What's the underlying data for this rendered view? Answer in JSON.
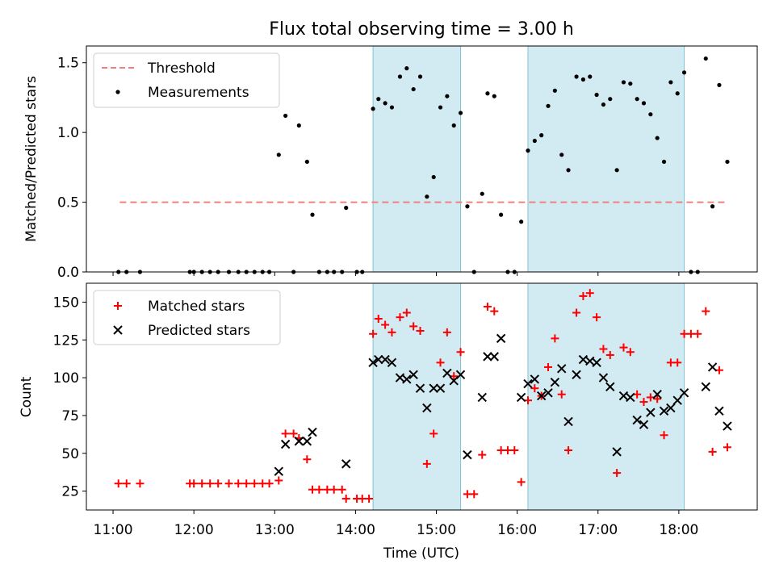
{
  "title": "Flux total observing time = 3.00 h",
  "colors": {
    "threshold": "#f08080",
    "measurement": "#000000",
    "matched": "#ff0000",
    "predicted": "#000000",
    "shade_fill": "#add8e6",
    "shade_edge": "#7fc4cf"
  },
  "chart_data": [
    {
      "type": "scatter",
      "ylabel": "Matched/Predicted stars",
      "ylim": [
        0,
        1.62
      ],
      "xlim_hours": [
        10.67,
        18.97
      ],
      "yticks": [
        0.0,
        0.5,
        1.0,
        1.5
      ],
      "ytick_labels": [
        "0.0",
        "0.5",
        "1.0",
        "1.5"
      ],
      "legend": {
        "location": "upper-left",
        "threshold": "Threshold",
        "measurements": "Measurements"
      },
      "threshold": {
        "value": 0.5,
        "x_from": "11:05",
        "x_to": "18:36"
      },
      "shaded_intervals": [
        [
          "14:13",
          "15:18"
        ],
        [
          "16:08",
          "18:04"
        ]
      ],
      "measurements": [
        [
          "11:04",
          0
        ],
        [
          "11:10",
          0
        ],
        [
          "11:20",
          0
        ],
        [
          "11:57",
          0
        ],
        [
          "12:00",
          0
        ],
        [
          "12:06",
          0
        ],
        [
          "12:12",
          0
        ],
        [
          "12:18",
          0
        ],
        [
          "12:26",
          0
        ],
        [
          "12:33",
          0
        ],
        [
          "12:39",
          0
        ],
        [
          "12:45",
          0
        ],
        [
          "12:51",
          0
        ],
        [
          "12:56",
          0
        ],
        [
          "13:03",
          0.84
        ],
        [
          "13:08",
          1.12
        ],
        [
          "13:14",
          0
        ],
        [
          "13:18",
          1.05
        ],
        [
          "13:24",
          0.79
        ],
        [
          "13:28",
          0.41
        ],
        [
          "13:33",
          0
        ],
        [
          "13:39",
          0
        ],
        [
          "13:44",
          0
        ],
        [
          "13:50",
          0
        ],
        [
          "13:53",
          0.46
        ],
        [
          "14:01",
          0
        ],
        [
          "14:05",
          0
        ],
        [
          "14:13",
          1.17
        ],
        [
          "14:17",
          1.24
        ],
        [
          "14:22",
          1.21
        ],
        [
          "14:27",
          1.18
        ],
        [
          "14:33",
          1.4
        ],
        [
          "14:38",
          1.46
        ],
        [
          "14:43",
          1.31
        ],
        [
          "14:48",
          1.4
        ],
        [
          "14:53",
          0.54
        ],
        [
          "14:58",
          0.68
        ],
        [
          "15:03",
          1.18
        ],
        [
          "15:08",
          1.26
        ],
        [
          "15:13",
          1.05
        ],
        [
          "15:18",
          1.14
        ],
        [
          "15:23",
          0.47
        ],
        [
          "15:28",
          0
        ],
        [
          "15:34",
          0.56
        ],
        [
          "15:38",
          1.28
        ],
        [
          "15:43",
          1.26
        ],
        [
          "15:48",
          0.41
        ],
        [
          "15:53",
          0
        ],
        [
          "15:58",
          0
        ],
        [
          "16:03",
          0.36
        ],
        [
          "16:08",
          0.87
        ],
        [
          "16:13",
          0.94
        ],
        [
          "16:18",
          0.98
        ],
        [
          "16:23",
          1.19
        ],
        [
          "16:28",
          1.3
        ],
        [
          "16:33",
          0.84
        ],
        [
          "16:38",
          0.73
        ],
        [
          "16:44",
          1.4
        ],
        [
          "16:49",
          1.38
        ],
        [
          "16:54",
          1.4
        ],
        [
          "16:59",
          1.27
        ],
        [
          "17:04",
          1.2
        ],
        [
          "17:09",
          1.24
        ],
        [
          "17:14",
          0.73
        ],
        [
          "17:19",
          1.36
        ],
        [
          "17:24",
          1.35
        ],
        [
          "17:29",
          1.24
        ],
        [
          "17:34",
          1.21
        ],
        [
          "17:39",
          1.13
        ],
        [
          "17:44",
          0.96
        ],
        [
          "17:49",
          0.79
        ],
        [
          "17:54",
          1.36
        ],
        [
          "17:59",
          1.28
        ],
        [
          "18:04",
          1.43
        ],
        [
          "18:09",
          0
        ],
        [
          "18:14",
          0
        ],
        [
          "18:20",
          1.53
        ],
        [
          "18:25",
          0.47
        ],
        [
          "18:30",
          1.34
        ],
        [
          "18:36",
          0.79
        ]
      ]
    },
    {
      "type": "scatter",
      "xlabel": "Time (UTC)",
      "ylabel": "Count",
      "ylim": [
        12.5,
        162.5
      ],
      "xlim_hours": [
        10.67,
        18.97
      ],
      "yticks": [
        25,
        50,
        75,
        100,
        125,
        150
      ],
      "ytick_labels": [
        "25",
        "50",
        "75",
        "100",
        "125",
        "150"
      ],
      "xticks": [
        "11:00",
        "12:00",
        "13:00",
        "14:00",
        "15:00",
        "16:00",
        "17:00",
        "18:00"
      ],
      "legend": {
        "location": "upper-left",
        "matched": "Matched stars",
        "predicted": "Predicted stars"
      },
      "shaded_intervals": [
        [
          "14:13",
          "15:18"
        ],
        [
          "16:08",
          "18:04"
        ]
      ],
      "matched": [
        [
          "11:04",
          30
        ],
        [
          "11:10",
          30
        ],
        [
          "11:20",
          30
        ],
        [
          "11:57",
          30
        ],
        [
          "12:00",
          30
        ],
        [
          "12:06",
          30
        ],
        [
          "12:12",
          30
        ],
        [
          "12:18",
          30
        ],
        [
          "12:26",
          30
        ],
        [
          "12:33",
          30
        ],
        [
          "12:39",
          30
        ],
        [
          "12:45",
          30
        ],
        [
          "12:51",
          30
        ],
        [
          "12:56",
          30
        ],
        [
          "13:03",
          32
        ],
        [
          "13:08",
          63
        ],
        [
          "13:14",
          63
        ],
        [
          "13:18",
          60
        ],
        [
          "13:24",
          46
        ],
        [
          "13:28",
          26
        ],
        [
          "13:33",
          26
        ],
        [
          "13:39",
          26
        ],
        [
          "13:44",
          26
        ],
        [
          "13:50",
          26
        ],
        [
          "13:53",
          20
        ],
        [
          "14:01",
          20
        ],
        [
          "14:05",
          20
        ],
        [
          "14:10",
          20
        ],
        [
          "14:13",
          129
        ],
        [
          "14:17",
          139
        ],
        [
          "14:22",
          135
        ],
        [
          "14:27",
          130
        ],
        [
          "14:33",
          140
        ],
        [
          "14:38",
          143
        ],
        [
          "14:43",
          134
        ],
        [
          "14:48",
          131
        ],
        [
          "14:53",
          43
        ],
        [
          "14:58",
          63
        ],
        [
          "15:03",
          110
        ],
        [
          "15:08",
          130
        ],
        [
          "15:13",
          101
        ],
        [
          "15:18",
          117
        ],
        [
          "15:23",
          23
        ],
        [
          "15:28",
          23
        ],
        [
          "15:34",
          49
        ],
        [
          "15:38",
          147
        ],
        [
          "15:43",
          144
        ],
        [
          "15:48",
          52
        ],
        [
          "15:53",
          52
        ],
        [
          "15:58",
          52
        ],
        [
          "16:03",
          31
        ],
        [
          "16:08",
          85
        ],
        [
          "16:13",
          93
        ],
        [
          "16:18",
          88
        ],
        [
          "16:23",
          107
        ],
        [
          "16:28",
          126
        ],
        [
          "16:33",
          89
        ],
        [
          "16:38",
          52
        ],
        [
          "16:44",
          143
        ],
        [
          "16:49",
          154
        ],
        [
          "16:54",
          156
        ],
        [
          "16:59",
          140
        ],
        [
          "17:04",
          119
        ],
        [
          "17:09",
          115
        ],
        [
          "17:14",
          37
        ],
        [
          "17:19",
          120
        ],
        [
          "17:24",
          117
        ],
        [
          "17:29",
          89
        ],
        [
          "17:34",
          84
        ],
        [
          "17:39",
          87
        ],
        [
          "17:44",
          86
        ],
        [
          "17:49",
          62
        ],
        [
          "17:54",
          110
        ],
        [
          "17:59",
          110
        ],
        [
          "18:04",
          129
        ],
        [
          "18:09",
          129
        ],
        [
          "18:14",
          129
        ],
        [
          "18:20",
          144
        ],
        [
          "18:25",
          51
        ],
        [
          "18:30",
          105
        ],
        [
          "18:36",
          54
        ]
      ],
      "predicted": [
        [
          "13:03",
          38
        ],
        [
          "13:08",
          56
        ],
        [
          "13:18",
          58
        ],
        [
          "13:24",
          58
        ],
        [
          "13:28",
          64
        ],
        [
          "13:53",
          43
        ],
        [
          "14:13",
          110
        ],
        [
          "14:17",
          112
        ],
        [
          "14:22",
          112
        ],
        [
          "14:27",
          110
        ],
        [
          "14:33",
          100
        ],
        [
          "14:38",
          99
        ],
        [
          "14:43",
          102
        ],
        [
          "14:48",
          93
        ],
        [
          "14:53",
          80
        ],
        [
          "14:58",
          93
        ],
        [
          "15:03",
          93
        ],
        [
          "15:08",
          103
        ],
        [
          "15:13",
          98
        ],
        [
          "15:18",
          102
        ],
        [
          "15:23",
          49
        ],
        [
          "15:34",
          87
        ],
        [
          "15:38",
          114
        ],
        [
          "15:43",
          114
        ],
        [
          "15:48",
          126
        ],
        [
          "16:03",
          87
        ],
        [
          "16:08",
          96
        ],
        [
          "16:13",
          99
        ],
        [
          "16:18",
          88
        ],
        [
          "16:23",
          90
        ],
        [
          "16:28",
          97
        ],
        [
          "16:33",
          106
        ],
        [
          "16:38",
          71
        ],
        [
          "16:44",
          102
        ],
        [
          "16:49",
          112
        ],
        [
          "16:54",
          111
        ],
        [
          "16:59",
          110
        ],
        [
          "17:04",
          100
        ],
        [
          "17:09",
          94
        ],
        [
          "17:14",
          51
        ],
        [
          "17:19",
          88
        ],
        [
          "17:24",
          87
        ],
        [
          "17:29",
          72
        ],
        [
          "17:34",
          69
        ],
        [
          "17:39",
          77
        ],
        [
          "17:44",
          89
        ],
        [
          "17:49",
          78
        ],
        [
          "17:54",
          80
        ],
        [
          "17:59",
          85
        ],
        [
          "18:04",
          90
        ],
        [
          "18:20",
          94
        ],
        [
          "18:25",
          107
        ],
        [
          "18:30",
          78
        ],
        [
          "18:36",
          68
        ]
      ]
    }
  ]
}
